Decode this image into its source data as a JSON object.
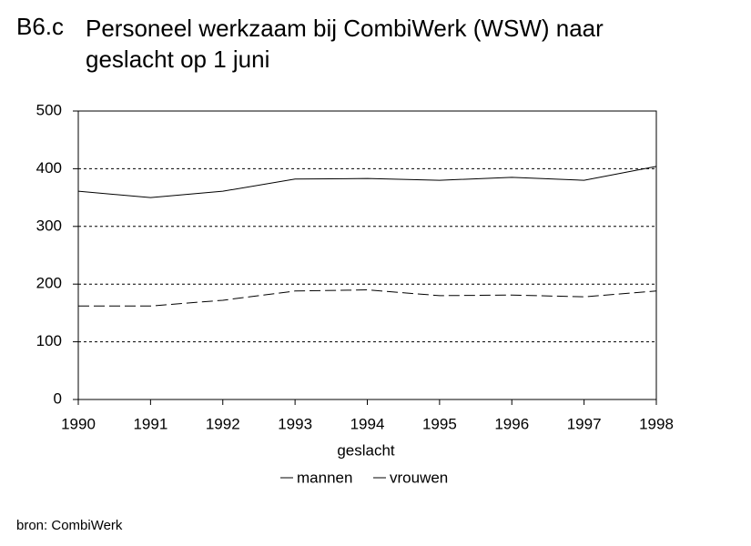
{
  "chart_data": {
    "type": "line",
    "label": "B6.c",
    "title": "Personeel werkzaam bij CombiWerk (WSW) naar geslacht op 1 juni",
    "x": [
      1990,
      1991,
      1992,
      1993,
      1994,
      1995,
      1996,
      1997,
      1998
    ],
    "xlim": [
      1990,
      1998
    ],
    "xticks": [
      1990,
      1991,
      1992,
      1993,
      1994,
      1995,
      1996,
      1997,
      1998
    ],
    "ylim": [
      0,
      500
    ],
    "yticks": [
      0,
      100,
      200,
      300,
      400,
      500
    ],
    "grid": true,
    "legend_title": "geslacht",
    "series": [
      {
        "name": "mannen",
        "color": "#000000",
        "linestyle": "solid",
        "values": [
          361,
          350,
          361,
          382,
          383,
          380,
          385,
          380,
          404
        ]
      },
      {
        "name": "vrouwen",
        "color": "#000000",
        "linestyle": "dashed",
        "values": [
          162,
          162,
          172,
          188,
          190,
          180,
          181,
          178,
          188
        ]
      }
    ],
    "source": "bron: CombiWerk"
  }
}
